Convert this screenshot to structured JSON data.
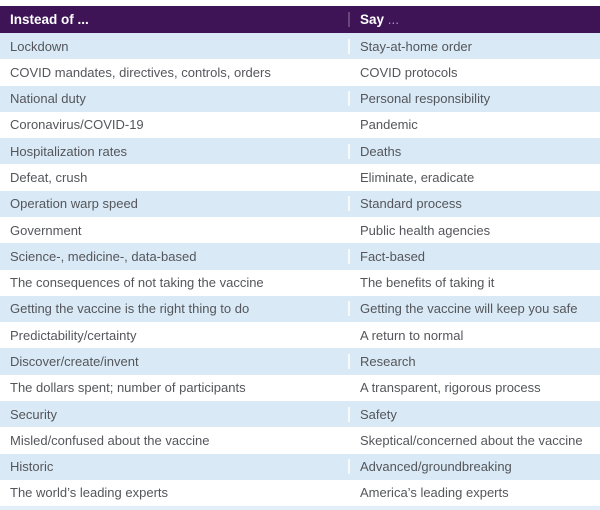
{
  "header": {
    "instead_label": "Instead of ...",
    "say_label": "Say",
    "say_ellipsis": "..."
  },
  "rows": [
    {
      "instead": "Lockdown",
      "say": "Stay-at-home order"
    },
    {
      "instead": "COVID mandates, directives, controls, orders",
      "say": "COVID protocols"
    },
    {
      "instead": "National duty",
      "say": "Personal responsibility"
    },
    {
      "instead": "Coronavirus/COVID-19",
      "say": "Pandemic"
    },
    {
      "instead": "Hospitalization rates",
      "say": "Deaths"
    },
    {
      "instead": "Defeat, crush",
      "say": "Eliminate, eradicate"
    },
    {
      "instead": "Operation warp speed",
      "say": "Standard process"
    },
    {
      "instead": "Government",
      "say": "Public health agencies"
    },
    {
      "instead": "Science-, medicine-, data-based",
      "say": "Fact-based"
    },
    {
      "instead": "The consequences of not taking the vaccine",
      "say": "The benefits of taking it"
    },
    {
      "instead": "Getting the vaccine is the right thing to do",
      "say": "Getting the vaccine will keep you safe"
    },
    {
      "instead": "Predictability/certainty",
      "say": "A return to normal"
    },
    {
      "instead": "Discover/create/invent",
      "say": "Research"
    },
    {
      "instead": "The dollars spent; number of participants",
      "say": "A transparent, rigorous process"
    },
    {
      "instead": "Security",
      "say": "Safety"
    },
    {
      "instead": "Misled/confused about the vaccine",
      "say": "Skeptical/concerned about the vaccine"
    },
    {
      "instead": "Historic",
      "say": "Advanced/groundbreaking"
    },
    {
      "instead": "The world’s leading experts",
      "say": "America’s leading experts"
    }
  ],
  "colors": {
    "header_bg": "#3e1456",
    "header_text": "#ffffff",
    "row_alt_bg": "#d9e9f5",
    "text": "#54565b",
    "say_ellipsis": "#a795bd"
  }
}
